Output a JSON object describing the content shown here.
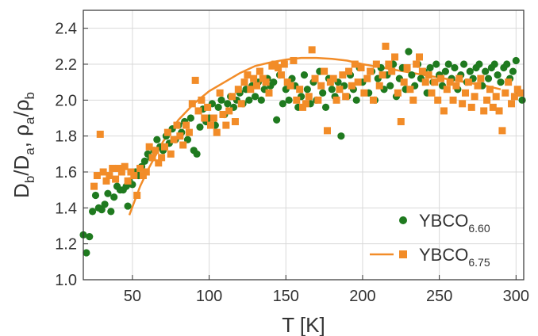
{
  "chart_data": {
    "type": "scatter",
    "xlabel": "T [K]",
    "ylabel": {
      "parts": [
        {
          "t": "D",
          "sub": false
        },
        {
          "t": "b",
          "sub": true
        },
        {
          "t": "/D",
          "sub": false
        },
        {
          "t": "a",
          "sub": true
        },
        {
          "t": ", ρ",
          "sub": false
        },
        {
          "t": "a",
          "sub": true
        },
        {
          "t": "/ρ",
          "sub": false
        },
        {
          "t": "b",
          "sub": true
        }
      ]
    },
    "xlim": [
      18,
      305
    ],
    "ylim": [
      1.0,
      2.5
    ],
    "xticks": [
      50,
      100,
      150,
      200,
      250,
      300
    ],
    "yticks": [
      1.0,
      1.2,
      1.4,
      1.6,
      1.8,
      2.0,
      2.2,
      2.4
    ],
    "xtick_labels": [
      "50",
      "100",
      "150",
      "200",
      "250",
      "300"
    ],
    "ytick_labels": [
      "1.0",
      "1.2",
      "1.4",
      "1.6",
      "1.8",
      "2.0",
      "2.2",
      "2.4"
    ],
    "grid": true,
    "legend_position": "bottom-right",
    "series": [
      {
        "name": "YBCO6.60",
        "label_main": "YBCO",
        "label_sub": "6.60",
        "marker": "circle",
        "color": "#1f7a1f",
        "points": [
          [
            18,
            1.25
          ],
          [
            20,
            1.15
          ],
          [
            22,
            1.24
          ],
          [
            24,
            1.38
          ],
          [
            26,
            1.47
          ],
          [
            28,
            1.4
          ],
          [
            30,
            1.39
          ],
          [
            32,
            1.42
          ],
          [
            34,
            1.48
          ],
          [
            36,
            1.38
          ],
          [
            38,
            1.46
          ],
          [
            40,
            1.52
          ],
          [
            42,
            1.5
          ],
          [
            44,
            1.5
          ],
          [
            46,
            1.52
          ],
          [
            47,
            1.41
          ],
          [
            48,
            1.55
          ],
          [
            50,
            1.53
          ],
          [
            52,
            1.6
          ],
          [
            54,
            1.58
          ],
          [
            56,
            1.63
          ],
          [
            58,
            1.66
          ],
          [
            60,
            1.7
          ],
          [
            62,
            1.68
          ],
          [
            64,
            1.72
          ],
          [
            66,
            1.78
          ],
          [
            68,
            1.74
          ],
          [
            70,
            1.72
          ],
          [
            72,
            1.8
          ],
          [
            74,
            1.76
          ],
          [
            76,
            1.84
          ],
          [
            78,
            1.78
          ],
          [
            80,
            1.86
          ],
          [
            82,
            1.82
          ],
          [
            84,
            1.88
          ],
          [
            86,
            1.78
          ],
          [
            88,
            1.9
          ],
          [
            90,
            1.72
          ],
          [
            92,
            1.7
          ],
          [
            94,
            1.85
          ],
          [
            96,
            1.95
          ],
          [
            98,
            1.88
          ],
          [
            100,
            1.9
          ],
          [
            102,
            1.98
          ],
          [
            104,
            1.86
          ],
          [
            106,
            1.96
          ],
          [
            108,
            2.0
          ],
          [
            110,
            1.92
          ],
          [
            112,
            1.98
          ],
          [
            114,
            2.02
          ],
          [
            116,
            1.96
          ],
          [
            118,
            2.0
          ],
          [
            120,
            2.04
          ],
          [
            122,
            1.98
          ],
          [
            124,
            2.06
          ],
          [
            126,
            2.0
          ],
          [
            128,
            2.08
          ],
          [
            130,
            2.02
          ],
          [
            132,
            2.1
          ],
          [
            134,
            2.0
          ],
          [
            136,
            2.06
          ],
          [
            138,
            2.12
          ],
          [
            140,
            2.08
          ],
          [
            142,
            2.1
          ],
          [
            144,
            1.89
          ],
          [
            146,
            2.14
          ],
          [
            148,
            1.98
          ],
          [
            150,
            2.06
          ],
          [
            152,
            2.0
          ],
          [
            154,
            2.12
          ],
          [
            156,
            2.08
          ],
          [
            158,
            1.96
          ],
          [
            160,
            2.02
          ],
          [
            162,
            2.14
          ],
          [
            164,
            2.06
          ],
          [
            166,
            1.98
          ],
          [
            168,
            2.1
          ],
          [
            170,
            2.0
          ],
          [
            172,
            2.16
          ],
          [
            174,
            2.04
          ],
          [
            176,
            1.96
          ],
          [
            178,
            2.12
          ],
          [
            180,
            2.06
          ],
          [
            182,
            2.02
          ],
          [
            184,
            2.1
          ],
          [
            186,
            1.8
          ],
          [
            188,
            2.08
          ],
          [
            190,
            2.02
          ],
          [
            192,
            2.14
          ],
          [
            194,
            2.06
          ],
          [
            196,
            2.0
          ],
          [
            198,
            2.18
          ],
          [
            200,
            2.1
          ],
          [
            204,
            2.04
          ],
          [
            206,
            2.16
          ],
          [
            208,
            2.0
          ],
          [
            210,
            2.12
          ],
          [
            212,
            2.18
          ],
          [
            214,
            2.06
          ],
          [
            216,
            2.14
          ],
          [
            218,
            2.08
          ],
          [
            220,
            2.2
          ],
          [
            222,
            2.02
          ],
          [
            224,
            2.12
          ],
          [
            226,
            2.18
          ],
          [
            228,
            2.06
          ],
          [
            230,
            2.27
          ],
          [
            232,
            2.14
          ],
          [
            234,
            2.08
          ],
          [
            236,
            2.2
          ],
          [
            238,
            2.12
          ],
          [
            240,
            2.16
          ],
          [
            242,
            2.04
          ],
          [
            244,
            2.18
          ],
          [
            246,
            2.1
          ],
          [
            248,
            2.2
          ],
          [
            250,
            2.14
          ],
          [
            252,
            2.08
          ],
          [
            254,
            2.16
          ],
          [
            256,
            2.2
          ],
          [
            258,
            2.12
          ],
          [
            260,
            2.18
          ],
          [
            262,
            2.06
          ],
          [
            264,
            2.14
          ],
          [
            266,
            2.2
          ],
          [
            268,
            2.1
          ],
          [
            270,
            2.16
          ],
          [
            272,
            2.12
          ],
          [
            274,
            2.18
          ],
          [
            276,
            2.2
          ],
          [
            278,
            2.08
          ],
          [
            280,
            2.16
          ],
          [
            282,
            2.12
          ],
          [
            284,
            2.18
          ],
          [
            286,
            2.2
          ],
          [
            288,
            2.14
          ],
          [
            290,
            2.1
          ],
          [
            292,
            2.18
          ],
          [
            294,
            2.2
          ],
          [
            296,
            2.12
          ],
          [
            298,
            2.16
          ],
          [
            300,
            2.22
          ],
          [
            302,
            2.04
          ],
          [
            304,
            2.0
          ]
        ]
      },
      {
        "name": "YBCO6.75",
        "label_main": "YBCO",
        "label_sub": "6.75",
        "marker": "square",
        "color": "#f28c28",
        "points": [
          [
            25,
            1.52
          ],
          [
            27,
            1.58
          ],
          [
            29,
            1.81
          ],
          [
            31,
            1.6
          ],
          [
            33,
            1.55
          ],
          [
            35,
            1.58
          ],
          [
            37,
            1.62
          ],
          [
            39,
            1.56
          ],
          [
            41,
            1.62
          ],
          [
            43,
            1.6
          ],
          [
            45,
            1.63
          ],
          [
            47,
            1.55
          ],
          [
            49,
            1.6
          ],
          [
            51,
            1.58
          ],
          [
            53,
            1.47
          ],
          [
            55,
            1.62
          ],
          [
            57,
            1.58
          ],
          [
            59,
            1.6
          ],
          [
            61,
            1.74
          ],
          [
            63,
            1.68
          ],
          [
            65,
            1.72
          ],
          [
            67,
            1.65
          ],
          [
            69,
            1.68
          ],
          [
            71,
            1.74
          ],
          [
            73,
            1.82
          ],
          [
            75,
            1.7
          ],
          [
            77,
            1.78
          ],
          [
            79,
            1.86
          ],
          [
            81,
            1.8
          ],
          [
            83,
            1.75
          ],
          [
            85,
            1.86
          ],
          [
            87,
            1.82
          ],
          [
            89,
            1.98
          ],
          [
            91,
            2.11
          ],
          [
            93,
            1.94
          ],
          [
            95,
            2.0
          ],
          [
            97,
            1.9
          ],
          [
            99,
            1.96
          ],
          [
            101,
            1.86
          ],
          [
            103,
            1.9
          ],
          [
            105,
            1.82
          ],
          [
            107,
            2.04
          ],
          [
            109,
            1.92
          ],
          [
            111,
            1.86
          ],
          [
            113,
            1.94
          ],
          [
            115,
            2.02
          ],
          [
            117,
            1.88
          ],
          [
            119,
            2.06
          ],
          [
            121,
            1.98
          ],
          [
            123,
            2.1
          ],
          [
            125,
            2.14
          ],
          [
            127,
            2.06
          ],
          [
            129,
            2.12
          ],
          [
            131,
            2.08
          ],
          [
            133,
            2.16
          ],
          [
            135,
            2.12
          ],
          [
            137,
            2.1
          ],
          [
            139,
            2.04
          ],
          [
            141,
            2.19
          ],
          [
            143,
            2.2
          ],
          [
            145,
            2.18
          ],
          [
            147,
            2.14
          ],
          [
            149,
            2.2
          ],
          [
            151,
            2.1
          ],
          [
            153,
            2.08
          ],
          [
            155,
            2.22
          ],
          [
            157,
            2.0
          ],
          [
            159,
            2.06
          ],
          [
            161,
            1.96
          ],
          [
            163,
            1.98
          ],
          [
            165,
            2.02
          ],
          [
            167,
            2.28
          ],
          [
            169,
            2.12
          ],
          [
            171,
            2.0
          ],
          [
            173,
            2.08
          ],
          [
            175,
            2.16
          ],
          [
            177,
            1.83
          ],
          [
            179,
            2.1
          ],
          [
            181,
            2.12
          ],
          [
            183,
            2.0
          ],
          [
            185,
            2.06
          ],
          [
            187,
            2.14
          ],
          [
            189,
            2.02
          ],
          [
            191,
            2.16
          ],
          [
            193,
            2.08
          ],
          [
            195,
            2.2
          ],
          [
            197,
            2.1
          ],
          [
            199,
            2.18
          ],
          [
            201,
            2.04
          ],
          [
            203,
            2.12
          ],
          [
            205,
            2.16
          ],
          [
            207,
            2.0
          ],
          [
            209,
            2.2
          ],
          [
            211,
            2.08
          ],
          [
            213,
            2.14
          ],
          [
            215,
            2.3
          ],
          [
            217,
            2.2
          ],
          [
            219,
            2.16
          ],
          [
            221,
            2.24
          ],
          [
            223,
            2.04
          ],
          [
            225,
            1.88
          ],
          [
            227,
            2.1
          ],
          [
            229,
            2.18
          ],
          [
            231,
            2.06
          ],
          [
            233,
            2.0
          ],
          [
            235,
            2.2
          ],
          [
            237,
            2.24
          ],
          [
            239,
            2.16
          ],
          [
            241,
            2.1
          ],
          [
            243,
            2.14
          ],
          [
            245,
            2.04
          ],
          [
            247,
            2.1
          ],
          [
            249,
            2.0
          ],
          [
            251,
            2.12
          ],
          [
            253,
            1.94
          ],
          [
            255,
            2.06
          ],
          [
            257,
            2.1
          ],
          [
            259,
            2.0
          ],
          [
            261,
            2.08
          ],
          [
            263,
            2.12
          ],
          [
            265,
            1.98
          ],
          [
            267,
            2.04
          ],
          [
            269,
            2.1
          ],
          [
            271,
            1.96
          ],
          [
            273,
            2.02
          ],
          [
            275,
            2.08
          ],
          [
            277,
            2.12
          ],
          [
            279,
            1.94
          ],
          [
            281,
            2.0
          ],
          [
            283,
            2.06
          ],
          [
            285,
            1.96
          ],
          [
            287,
            2.02
          ],
          [
            289,
            1.94
          ],
          [
            291,
            1.83
          ],
          [
            293,
            2.04
          ],
          [
            295,
            2.1
          ],
          [
            297,
            1.98
          ],
          [
            299,
            2.02
          ],
          [
            301,
            2.06
          ],
          [
            303,
            2.04
          ]
        ]
      }
    ],
    "fit_curve": {
      "series": "YBCO6.75",
      "color": "#f28c28",
      "points": [
        [
          48,
          1.36
        ],
        [
          55,
          1.52
        ],
        [
          60,
          1.61
        ],
        [
          70,
          1.77
        ],
        [
          80,
          1.89
        ],
        [
          90,
          1.98
        ],
        [
          100,
          2.05
        ],
        [
          110,
          2.1
        ],
        [
          120,
          2.15
        ],
        [
          130,
          2.19
        ],
        [
          140,
          2.21
        ],
        [
          150,
          2.225
        ],
        [
          160,
          2.235
        ],
        [
          170,
          2.235
        ],
        [
          180,
          2.23
        ],
        [
          190,
          2.22
        ],
        [
          200,
          2.2
        ],
        [
          210,
          2.185
        ],
        [
          220,
          2.17
        ],
        [
          230,
          2.155
        ],
        [
          240,
          2.14
        ],
        [
          250,
          2.125
        ],
        [
          260,
          2.11
        ],
        [
          270,
          2.095
        ],
        [
          280,
          2.08
        ],
        [
          290,
          2.06
        ]
      ]
    }
  },
  "legend": {
    "items": [
      {
        "main": "YBCO",
        "sub": "6.60",
        "marker": "circle",
        "color": "#1f7a1f"
      },
      {
        "main": "YBCO",
        "sub": "6.75",
        "marker": "square",
        "color": "#f28c28"
      }
    ]
  }
}
